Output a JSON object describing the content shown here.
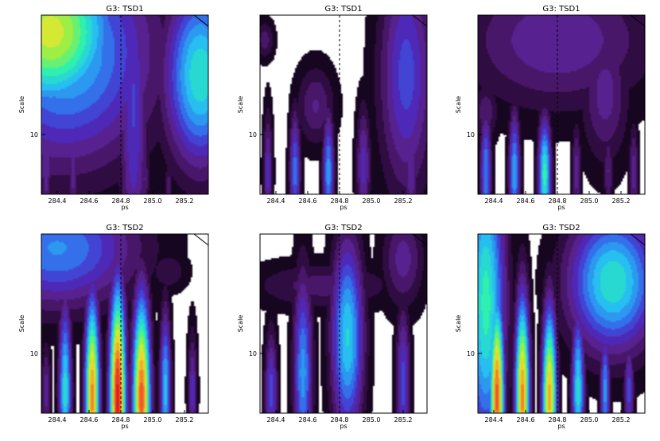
{
  "chart_data": [
    {
      "type": "heatmap",
      "title": "G3: TSD1",
      "xlabel": "ps",
      "ylabel": "Scale",
      "xticks": [
        "284.4",
        "284.6",
        "284.8",
        "285.0",
        "285.2"
      ],
      "xtick_values": [
        284.4,
        284.6,
        284.8,
        285.0,
        285.2
      ],
      "yticks": [
        "10"
      ],
      "ytick_values": [
        10
      ],
      "xlim": [
        284.3,
        285.35
      ],
      "ylim": [
        5,
        40
      ],
      "y_scale": "log",
      "dashed_line_x": 284.8,
      "colormap": [
        "#000000",
        "#2a0a3a",
        "#5a1e82",
        "#4a2cc8",
        "#2f7cf0",
        "#27c2f0",
        "#2af0b4",
        "#8ef04a",
        "#f0e62a",
        "#f0a02a",
        "#f0502a",
        "#e01e1e"
      ],
      "blobs": [
        {
          "x": 284.36,
          "y": 33,
          "rx": 0.42,
          "ry": 0.42,
          "v": 0.7
        },
        {
          "x": 284.45,
          "y": 26,
          "rx": 0.55,
          "ry": 0.55,
          "v": 0.45
        },
        {
          "x": 285.3,
          "y": 20,
          "rx": 0.22,
          "ry": 0.45,
          "v": 0.52
        },
        {
          "x": 284.88,
          "y": 14,
          "rx": 0.09,
          "ry": 0.9,
          "v": 0.28
        },
        {
          "x": 284.33,
          "y": 7,
          "rx": 0.035,
          "ry": 0.28,
          "v": 0.22
        },
        {
          "x": 284.5,
          "y": 6.5,
          "rx": 0.035,
          "ry": 0.25,
          "v": 0.2
        },
        {
          "x": 284.95,
          "y": 6,
          "rx": 0.03,
          "ry": 0.15,
          "v": 0.18
        },
        {
          "x": 285.1,
          "y": 5.5,
          "rx": 0.025,
          "ry": 0.12,
          "v": 0.15
        }
      ]
    },
    {
      "type": "heatmap",
      "title": "G3: TSD1",
      "xlabel": "ps",
      "ylabel": "Scale",
      "xticks": [
        "284.4",
        "284.6",
        "284.8",
        "285.0",
        "285.2"
      ],
      "xtick_values": [
        284.4,
        284.6,
        284.8,
        285.0,
        285.2
      ],
      "yticks": [
        "10"
      ],
      "ytick_values": [
        10
      ],
      "xlim": [
        284.3,
        285.35
      ],
      "ylim": [
        5,
        40
      ],
      "y_scale": "log",
      "dashed_line_x": 284.8,
      "colormap": [
        "#000000",
        "#2a0a3a",
        "#5a1e82",
        "#4a2cc8",
        "#2f7cf0",
        "#27c2f0",
        "#2af0b4",
        "#8ef04a",
        "#f0e62a",
        "#f0a02a",
        "#f0502a",
        "#e01e1e"
      ],
      "blobs": [
        {
          "x": 285.22,
          "y": 20,
          "rx": 0.17,
          "ry": 0.6,
          "v": 0.3
        },
        {
          "x": 284.33,
          "y": 30,
          "rx": 0.06,
          "ry": 0.1,
          "v": 0.15
        },
        {
          "x": 284.65,
          "y": 14,
          "rx": 0.12,
          "ry": 0.2,
          "v": 0.18
        },
        {
          "x": 284.35,
          "y": 6.5,
          "rx": 0.03,
          "ry": 0.3,
          "v": 0.25
        },
        {
          "x": 284.52,
          "y": 6.5,
          "rx": 0.035,
          "ry": 0.3,
          "v": 0.35
        },
        {
          "x": 284.73,
          "y": 6.5,
          "rx": 0.035,
          "ry": 0.3,
          "v": 0.4
        },
        {
          "x": 284.95,
          "y": 7,
          "rx": 0.045,
          "ry": 0.3,
          "v": 0.25
        },
        {
          "x": 285.25,
          "y": 6.5,
          "rx": 0.04,
          "ry": 0.3,
          "v": 0.22
        }
      ]
    },
    {
      "type": "heatmap",
      "title": "G3: TSD1",
      "xlabel": "ps",
      "ylabel": "Scale",
      "xticks": [
        "284.4",
        "284.6",
        "284.8",
        "285.0",
        "285.2"
      ],
      "xtick_values": [
        284.4,
        284.6,
        284.8,
        285.0,
        285.2
      ],
      "yticks": [
        "10"
      ],
      "ytick_values": [
        10
      ],
      "xlim": [
        284.3,
        285.35
      ],
      "ylim": [
        5,
        40
      ],
      "y_scale": "log",
      "dashed_line_x": 284.8,
      "colormap": [
        "#000000",
        "#2a0a3a",
        "#5a1e82",
        "#4a2cc8",
        "#2f7cf0",
        "#27c2f0",
        "#2af0b4",
        "#8ef04a",
        "#f0e62a",
        "#f0a02a",
        "#f0502a",
        "#e01e1e"
      ],
      "blobs": [
        {
          "x": 284.8,
          "y": 30,
          "rx": 0.6,
          "ry": 0.35,
          "v": 0.22
        },
        {
          "x": 285.1,
          "y": 16,
          "rx": 0.15,
          "ry": 0.35,
          "v": 0.2
        },
        {
          "x": 284.35,
          "y": 13,
          "rx": 0.08,
          "ry": 0.15,
          "v": 0.16
        },
        {
          "x": 284.35,
          "y": 6.5,
          "rx": 0.035,
          "ry": 0.3,
          "v": 0.38
        },
        {
          "x": 284.53,
          "y": 6.5,
          "rx": 0.035,
          "ry": 0.3,
          "v": 0.42
        },
        {
          "x": 284.72,
          "y": 6.3,
          "rx": 0.04,
          "ry": 0.28,
          "v": 0.55
        },
        {
          "x": 284.92,
          "y": 6.5,
          "rx": 0.03,
          "ry": 0.25,
          "v": 0.2
        },
        {
          "x": 285.12,
          "y": 6.5,
          "rx": 0.03,
          "ry": 0.22,
          "v": 0.18
        },
        {
          "x": 285.28,
          "y": 6.5,
          "rx": 0.03,
          "ry": 0.25,
          "v": 0.2
        }
      ]
    },
    {
      "type": "heatmap",
      "title": "G3: TSD2",
      "xlabel": "ps",
      "ylabel": "Scale",
      "xticks": [
        "284.4",
        "284.6",
        "284.8",
        "285.0",
        "285.2"
      ],
      "xtick_values": [
        284.4,
        284.6,
        284.8,
        285.0,
        285.2
      ],
      "yticks": [
        "10"
      ],
      "ytick_values": [
        10
      ],
      "xlim": [
        284.3,
        285.35
      ],
      "ylim": [
        5,
        40
      ],
      "y_scale": "log",
      "dashed_line_x": 284.8,
      "colormap": [
        "#000000",
        "#2a0a3a",
        "#5a1e82",
        "#4a2cc8",
        "#2f7cf0",
        "#27c2f0",
        "#2af0b4",
        "#8ef04a",
        "#f0e62a",
        "#f0a02a",
        "#f0502a",
        "#e01e1e"
      ],
      "blobs": [
        {
          "x": 284.4,
          "y": 34,
          "rx": 0.5,
          "ry": 0.3,
          "v": 0.38
        },
        {
          "x": 285.1,
          "y": 26,
          "rx": 0.12,
          "ry": 0.1,
          "v": 0.12
        },
        {
          "x": 284.78,
          "y": 6,
          "rx": 0.05,
          "ry": 0.55,
          "v": 1.0
        },
        {
          "x": 284.93,
          "y": 6,
          "rx": 0.055,
          "ry": 0.5,
          "v": 0.9
        },
        {
          "x": 284.62,
          "y": 6,
          "rx": 0.045,
          "ry": 0.5,
          "v": 0.85
        },
        {
          "x": 284.45,
          "y": 6.5,
          "rx": 0.04,
          "ry": 0.45,
          "v": 0.5
        },
        {
          "x": 285.08,
          "y": 6.5,
          "rx": 0.035,
          "ry": 0.4,
          "v": 0.45
        },
        {
          "x": 285.25,
          "y": 6.5,
          "rx": 0.03,
          "ry": 0.3,
          "v": 0.25
        },
        {
          "x": 284.33,
          "y": 6.5,
          "rx": 0.03,
          "ry": 0.25,
          "v": 0.2
        }
      ]
    },
    {
      "type": "heatmap",
      "title": "G3: TSD2",
      "xlabel": "ps",
      "ylabel": "Scale",
      "xticks": [
        "284.4",
        "284.6",
        "284.8",
        "285.0",
        "285.2"
      ],
      "xtick_values": [
        284.4,
        284.6,
        284.8,
        285.0,
        285.2
      ],
      "yticks": [
        "10"
      ],
      "ytick_values": [
        10
      ],
      "xlim": [
        284.3,
        285.35
      ],
      "ylim": [
        5,
        40
      ],
      "y_scale": "log",
      "dashed_line_x": 284.8,
      "colormap": [
        "#000000",
        "#2a0a3a",
        "#5a1e82",
        "#4a2cc8",
        "#2f7cf0",
        "#27c2f0",
        "#2af0b4",
        "#8ef04a",
        "#f0e62a",
        "#f0a02a",
        "#f0502a",
        "#e01e1e"
      ],
      "blobs": [
        {
          "x": 285.2,
          "y": 30,
          "rx": 0.13,
          "ry": 0.25,
          "v": 0.2
        },
        {
          "x": 284.7,
          "y": 22,
          "rx": 0.45,
          "ry": 0.12,
          "v": 0.15
        },
        {
          "x": 284.85,
          "y": 12,
          "rx": 0.1,
          "ry": 0.5,
          "v": 0.48
        },
        {
          "x": 284.57,
          "y": 8,
          "rx": 0.06,
          "ry": 0.5,
          "v": 0.4
        },
        {
          "x": 284.37,
          "y": 6.5,
          "rx": 0.04,
          "ry": 0.3,
          "v": 0.3
        },
        {
          "x": 285.2,
          "y": 7,
          "rx": 0.045,
          "ry": 0.4,
          "v": 0.3
        }
      ]
    },
    {
      "type": "heatmap",
      "title": "G3: TSD2",
      "xlabel": "ps",
      "ylabel": "Scale",
      "xticks": [
        "284.4",
        "284.6",
        "284.8",
        "285.0",
        "285.2"
      ],
      "xtick_values": [
        284.4,
        284.6,
        284.8,
        285.0,
        285.2
      ],
      "yticks": [
        "10"
      ],
      "ytick_values": [
        10
      ],
      "xlim": [
        284.3,
        285.35
      ],
      "ylim": [
        5,
        40
      ],
      "y_scale": "log",
      "dashed_line_x": 284.8,
      "colormap": [
        "#000000",
        "#2a0a3a",
        "#5a1e82",
        "#4a2cc8",
        "#2f7cf0",
        "#27c2f0",
        "#2af0b4",
        "#8ef04a",
        "#f0e62a",
        "#f0a02a",
        "#f0502a",
        "#e01e1e"
      ],
      "blobs": [
        {
          "x": 284.35,
          "y": 18,
          "rx": 0.12,
          "ry": 0.75,
          "v": 0.55
        },
        {
          "x": 285.15,
          "y": 23,
          "rx": 0.28,
          "ry": 0.35,
          "v": 0.52
        },
        {
          "x": 284.42,
          "y": 6,
          "rx": 0.045,
          "ry": 0.5,
          "v": 0.9
        },
        {
          "x": 284.58,
          "y": 6,
          "rx": 0.045,
          "ry": 0.5,
          "v": 0.85
        },
        {
          "x": 284.75,
          "y": 6,
          "rx": 0.045,
          "ry": 0.45,
          "v": 0.8
        },
        {
          "x": 284.93,
          "y": 6.5,
          "rx": 0.04,
          "ry": 0.4,
          "v": 0.5
        },
        {
          "x": 285.1,
          "y": 6.5,
          "rx": 0.03,
          "ry": 0.3,
          "v": 0.4
        },
        {
          "x": 285.25,
          "y": 6.5,
          "rx": 0.03,
          "ry": 0.25,
          "v": 0.3
        }
      ]
    }
  ]
}
